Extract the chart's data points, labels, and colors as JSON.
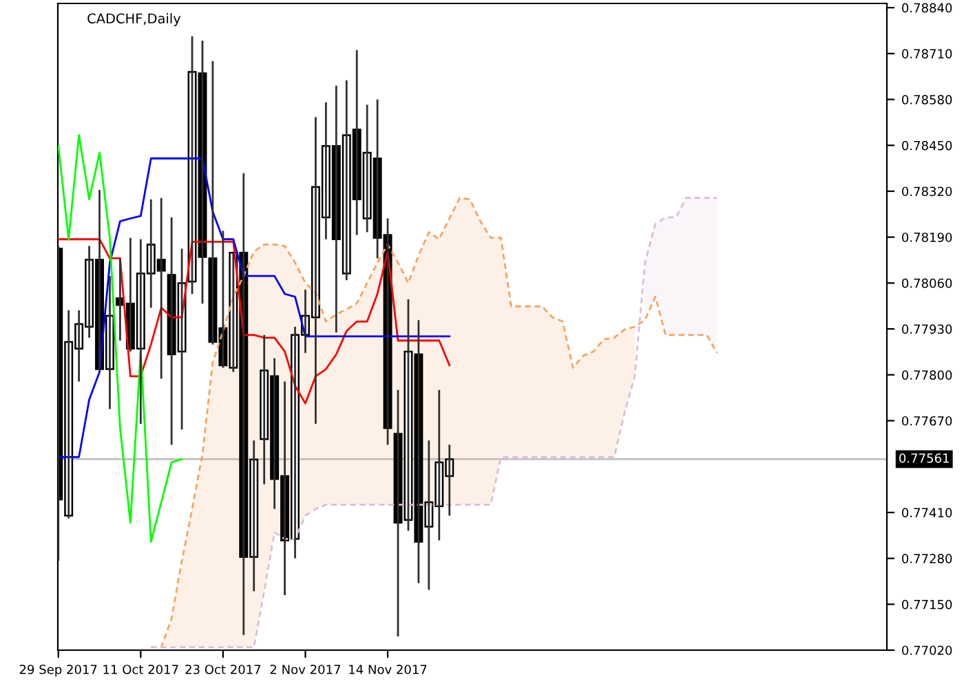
{
  "chart_data": {
    "type": "candlestick",
    "title": "CADCHF,Daily",
    "categories": [
      "29 Sep 2017",
      null,
      null,
      null,
      null,
      null,
      null,
      null,
      "11 Oct 2017",
      null,
      null,
      null,
      null,
      null,
      null,
      null,
      "23 Oct 2017",
      null,
      null,
      null,
      null,
      null,
      null,
      null,
      "2 Nov 2017",
      null,
      null,
      null,
      null,
      null,
      null,
      null,
      "14 Nov 2017",
      null,
      null,
      null,
      null,
      null,
      null,
      null,
      null,
      null,
      null,
      null,
      null,
      null,
      null,
      null,
      null,
      null,
      null,
      null,
      null,
      null,
      null,
      null,
      null,
      null,
      null,
      null,
      null,
      null,
      null,
      null,
      null
    ],
    "ohlc": [
      [
        0.78157,
        0.78165,
        0.77273,
        0.77447
      ],
      [
        0.77401,
        0.77983,
        0.77393,
        0.77893
      ],
      [
        0.77874,
        0.77983,
        0.77781,
        0.77944
      ],
      [
        0.77936,
        0.78165,
        0.77905,
        0.78126
      ],
      [
        0.78126,
        0.78324,
        0.77808,
        0.77816
      ],
      [
        0.77816,
        0.7808,
        0.77703,
        0.77967
      ],
      [
        0.78017,
        0.7813,
        0.77897,
        0.77998
      ],
      [
        0.78002,
        0.78188,
        0.77866,
        0.77874
      ],
      [
        0.77874,
        0.78184,
        0.77661,
        0.78087
      ],
      [
        0.78087,
        0.78297,
        0.7799,
        0.78169
      ],
      [
        0.78126,
        0.78301,
        0.77789,
        0.78095
      ],
      [
        0.78083,
        0.78246,
        0.77602,
        0.77858
      ],
      [
        0.77866,
        0.78157,
        0.77645,
        0.7806
      ],
      [
        0.78064,
        0.78759,
        0.78029,
        0.78658
      ],
      [
        0.78654,
        0.78747,
        0.78002,
        0.78134
      ],
      [
        0.7813,
        0.78689,
        0.77886,
        0.77893
      ],
      [
        0.77932,
        0.78208,
        0.7782,
        0.77827
      ],
      [
        0.7782,
        0.78146,
        0.77808,
        0.78146
      ],
      [
        0.78146,
        0.78371,
        0.77063,
        0.77284
      ],
      [
        0.77284,
        0.77614,
        0.77187,
        0.7756
      ],
      [
        0.77618,
        0.77913,
        0.7749,
        0.77812
      ],
      [
        0.77796,
        0.77847,
        0.7742,
        0.77505
      ],
      [
        0.77513,
        0.77781,
        0.77176,
        0.77331
      ],
      [
        0.77335,
        0.77936,
        0.7728,
        0.77913
      ],
      [
        0.77913,
        0.78041,
        0.77862,
        0.77967
      ],
      [
        0.77963,
        0.7853,
        0.77661,
        0.78332
      ],
      [
        0.78246,
        0.78572,
        0.78184,
        0.78448
      ],
      [
        0.78448,
        0.78619,
        0.7792,
        0.78184
      ],
      [
        0.78087,
        0.78634,
        0.78068,
        0.78479
      ],
      [
        0.78495,
        0.7872,
        0.78196,
        0.78297
      ],
      [
        0.78243,
        0.78565,
        0.78204,
        0.78429
      ],
      [
        0.78413,
        0.7858,
        0.7813,
        0.78188
      ],
      [
        0.78196,
        0.78243,
        0.77602,
        0.77649
      ],
      [
        0.77633,
        0.77757,
        0.77059,
        0.77381
      ],
      [
        0.77389,
        0.78014,
        0.77358,
        0.77866
      ],
      [
        0.77858,
        0.77955,
        0.7721,
        0.77327
      ],
      [
        0.7737,
        0.77614,
        0.77191,
        0.77439
      ],
      [
        0.77428,
        0.77757,
        0.77331,
        0.77552
      ],
      [
        0.77513,
        0.77602,
        0.77401,
        0.77561
      ],
      null,
      null,
      null,
      null,
      null,
      null,
      null,
      null,
      null,
      null,
      null,
      null,
      null,
      null,
      null,
      null,
      null,
      null,
      null,
      null,
      null,
      null,
      null,
      null,
      null,
      null
    ],
    "series": [
      {
        "type": "line",
        "color": "#ff0000",
        "values": [
          0.78184,
          0.78184,
          0.78184,
          0.78184,
          0.78184,
          0.7813,
          0.7813,
          0.77796,
          0.77796,
          0.77886,
          0.7799,
          0.77963,
          0.77963,
          0.78177,
          0.78177,
          0.78177,
          0.78177,
          0.78177,
          0.77913,
          0.77913,
          0.77905,
          0.77905,
          0.77866,
          0.77769,
          0.77719,
          0.77796,
          0.77816,
          0.77858,
          0.77924,
          0.77951,
          0.77951,
          0.78029,
          0.78149,
          0.77897,
          0.77897,
          0.77897,
          0.77897,
          0.77897,
          0.77827,
          null,
          null,
          null,
          null,
          null,
          null,
          null,
          null,
          null,
          null,
          null,
          null,
          null,
          null,
          null,
          null,
          null,
          null,
          null,
          null,
          null,
          null,
          null,
          null,
          null,
          null
        ]
      },
      {
        "type": "line",
        "color": "#0000ff",
        "values": [
          0.77567,
          0.77567,
          0.77567,
          0.7773,
          0.77808,
          0.78118,
          0.78235,
          0.78243,
          0.7825,
          0.78413,
          0.78413,
          0.78413,
          0.78413,
          0.78413,
          0.78413,
          0.78262,
          0.78184,
          0.78184,
          0.7808,
          0.7808,
          0.7808,
          0.7808,
          0.78029,
          0.78021,
          0.77909,
          0.77909,
          0.77909,
          0.77909,
          0.77909,
          0.77909,
          0.77909,
          0.77909,
          0.77909,
          0.77909,
          0.77909,
          0.77909,
          0.77909,
          0.77909,
          0.77909,
          null,
          null,
          null,
          null,
          null,
          null,
          null,
          null,
          null,
          null,
          null,
          null,
          null,
          null,
          null,
          null,
          null,
          null,
          null,
          null,
          null,
          null,
          null,
          null,
          null,
          null
        ]
      },
      {
        "type": "line",
        "color": "#00ff00",
        "values": [
          0.78448,
          0.78184,
          0.78479,
          0.78297,
          0.78429,
          0.78188,
          0.77649,
          0.77381,
          0.77866,
          0.77327,
          0.77439,
          0.77552,
          0.77561,
          null,
          null,
          null,
          null,
          null,
          null,
          null,
          null,
          null,
          null,
          null,
          null,
          null,
          null,
          null,
          null,
          null,
          null,
          null,
          null,
          null,
          null,
          null,
          null,
          null,
          null,
          null,
          null,
          null,
          null,
          null,
          null,
          null,
          null,
          null,
          null,
          null,
          null,
          null,
          null,
          null,
          null,
          null,
          null,
          null,
          null,
          null,
          null,
          null,
          null,
          null,
          null
        ]
      },
      {
        "type": "line",
        "color": "#f4a460",
        "line_style": "dashed",
        "values": [
          null,
          null,
          null,
          null,
          null,
          null,
          null,
          null,
          null,
          0.77028,
          0.77028,
          0.7711,
          0.77273,
          0.7742,
          0.77575,
          0.77835,
          0.77924,
          0.78021,
          0.7808,
          0.78149,
          0.78169,
          0.78169,
          0.78165,
          0.78118,
          0.7806,
          0.78033,
          0.77951,
          0.77971,
          0.77986,
          0.78002,
          0.7806,
          0.78118,
          0.78169,
          0.78118,
          0.7806,
          0.78138,
          0.78204,
          0.78184,
          0.78243,
          0.78301,
          0.78297,
          0.78235,
          0.78188,
          0.78188,
          0.77994,
          0.77994,
          0.77994,
          0.77994,
          0.77963,
          0.77951,
          0.7782,
          0.77854,
          0.77866,
          0.77901,
          0.77905,
          0.77928,
          0.77936,
          0.77955,
          0.78021,
          0.77913,
          0.77913,
          0.77913,
          0.77913,
          0.77913,
          0.77862
        ],
        "upper": [
          null,
          null,
          null,
          null,
          null,
          null,
          null,
          null,
          null,
          0.77028,
          0.77028,
          0.7711,
          0.77273,
          0.7742,
          0.77575,
          0.77835,
          0.77924,
          0.78021,
          0.7808,
          0.78149,
          0.78169,
          0.78169,
          0.78165,
          0.78118,
          0.7806,
          0.78033,
          0.77951,
          0.77971,
          0.77986,
          0.78002,
          0.7806,
          0.78118,
          0.78169,
          0.78118,
          0.7806,
          0.78138,
          0.78204,
          0.78184,
          0.78243,
          0.78301,
          0.78297,
          0.78235,
          0.78188,
          0.78188,
          0.77994,
          0.77994,
          0.77994,
          0.77994,
          0.77963,
          0.77951,
          0.7782,
          0.77854,
          0.77866,
          0.77901,
          0.77905,
          0.77928,
          0.77936,
          null,
          null,
          null,
          null,
          null,
          null,
          null,
          null
        ],
        "lower": [
          null,
          null,
          null,
          null,
          null,
          null,
          null,
          null,
          null,
          0.77028,
          0.77028,
          0.77028,
          0.77028,
          0.77028,
          0.77028,
          0.77028,
          0.77028,
          0.77028,
          0.77028,
          0.77028,
          0.77187,
          0.77354,
          0.77335,
          0.77335,
          0.77401,
          0.7742,
          0.77432,
          0.77432,
          0.77432,
          0.77432,
          0.77432,
          0.77432,
          0.77432,
          0.77432,
          0.77432,
          0.77432,
          0.77432,
          0.77432,
          0.77432,
          0.77432,
          0.77432,
          0.77432,
          0.77432,
          0.77567,
          0.77567,
          0.77567,
          0.77567,
          0.77567,
          0.77567,
          0.77567,
          0.77567,
          0.77567,
          0.77567,
          0.77567,
          0.77567,
          0.77691,
          0.77796,
          null,
          null,
          null,
          null,
          null,
          null,
          null,
          null
        ]
      },
      {
        "type": "line",
        "color": "#d8bfd8",
        "line_style": "dashed",
        "values": [
          null,
          null,
          null,
          null,
          null,
          null,
          null,
          null,
          null,
          0.77028,
          0.77028,
          0.77028,
          0.77028,
          0.77028,
          0.77028,
          0.77028,
          0.77028,
          0.77028,
          0.77028,
          0.77028,
          0.77187,
          0.77354,
          0.77335,
          0.77335,
          0.77401,
          0.7742,
          0.77432,
          0.77432,
          0.77432,
          0.77432,
          0.77432,
          0.77432,
          0.77432,
          0.77432,
          0.77432,
          0.77432,
          0.77432,
          0.77432,
          0.77432,
          0.77432,
          0.77432,
          0.77432,
          0.77432,
          0.77567,
          0.77567,
          0.77567,
          0.77567,
          0.77567,
          0.77567,
          0.77567,
          0.77567,
          0.77567,
          0.77567,
          0.77567,
          0.77567,
          0.77691,
          0.77796,
          0.78118,
          0.78227,
          0.78246,
          0.78246,
          0.78301,
          0.78301,
          0.78301,
          0.78301
        ],
        "upper": [
          null,
          null,
          null,
          null,
          null,
          null,
          null,
          null,
          null,
          null,
          null,
          null,
          null,
          null,
          null,
          null,
          null,
          null,
          null,
          null,
          null,
          null,
          null,
          null,
          null,
          null,
          null,
          null,
          null,
          null,
          null,
          null,
          null,
          null,
          null,
          null,
          null,
          null,
          null,
          null,
          null,
          null,
          null,
          null,
          null,
          null,
          null,
          null,
          null,
          null,
          null,
          null,
          null,
          null,
          null,
          null,
          null,
          0.78118,
          0.78227,
          0.78246,
          0.78246,
          0.78301,
          0.78301,
          0.78301,
          0.78301
        ],
        "lower": [
          null,
          null,
          null,
          null,
          null,
          null,
          null,
          null,
          null,
          null,
          null,
          null,
          null,
          null,
          null,
          null,
          null,
          null,
          null,
          null,
          null,
          null,
          null,
          null,
          null,
          null,
          null,
          null,
          null,
          null,
          null,
          null,
          null,
          null,
          null,
          null,
          null,
          null,
          null,
          null,
          null,
          null,
          null,
          null,
          null,
          null,
          null,
          null,
          null,
          null,
          null,
          null,
          null,
          null,
          null,
          null,
          null,
          0.77955,
          0.78021,
          0.77913,
          0.77913,
          0.77913,
          0.77913,
          0.77913,
          0.77862
        ]
      }
    ],
    "ylim": [
      0.7702,
      0.78852
    ],
    "yticks": [
      {
        "value": 0.7702,
        "label": "0.77020"
      },
      {
        "value": 0.7715,
        "label": "0.77150"
      },
      {
        "value": 0.7728,
        "label": "0.77280"
      },
      {
        "value": 0.7741,
        "label": "0.77410"
      },
      {
        "value": 0.7767,
        "label": "0.77670"
      },
      {
        "value": 0.778,
        "label": "0.77800"
      },
      {
        "value": 0.7793,
        "label": "0.77930"
      },
      {
        "value": 0.7806,
        "label": "0.78060"
      },
      {
        "value": 0.7819,
        "label": "0.78190"
      },
      {
        "value": 0.7832,
        "label": "0.78320"
      },
      {
        "value": 0.7845,
        "label": "0.78450"
      },
      {
        "value": 0.7858,
        "label": "0.78580"
      },
      {
        "value": 0.7871,
        "label": "0.78710"
      },
      {
        "value": 0.7884,
        "label": "0.78840"
      }
    ],
    "ref_lines": [
      {
        "axis": "y",
        "value": 0.77561,
        "label": "0.77561",
        "color": "#c0c0c0"
      }
    ]
  }
}
